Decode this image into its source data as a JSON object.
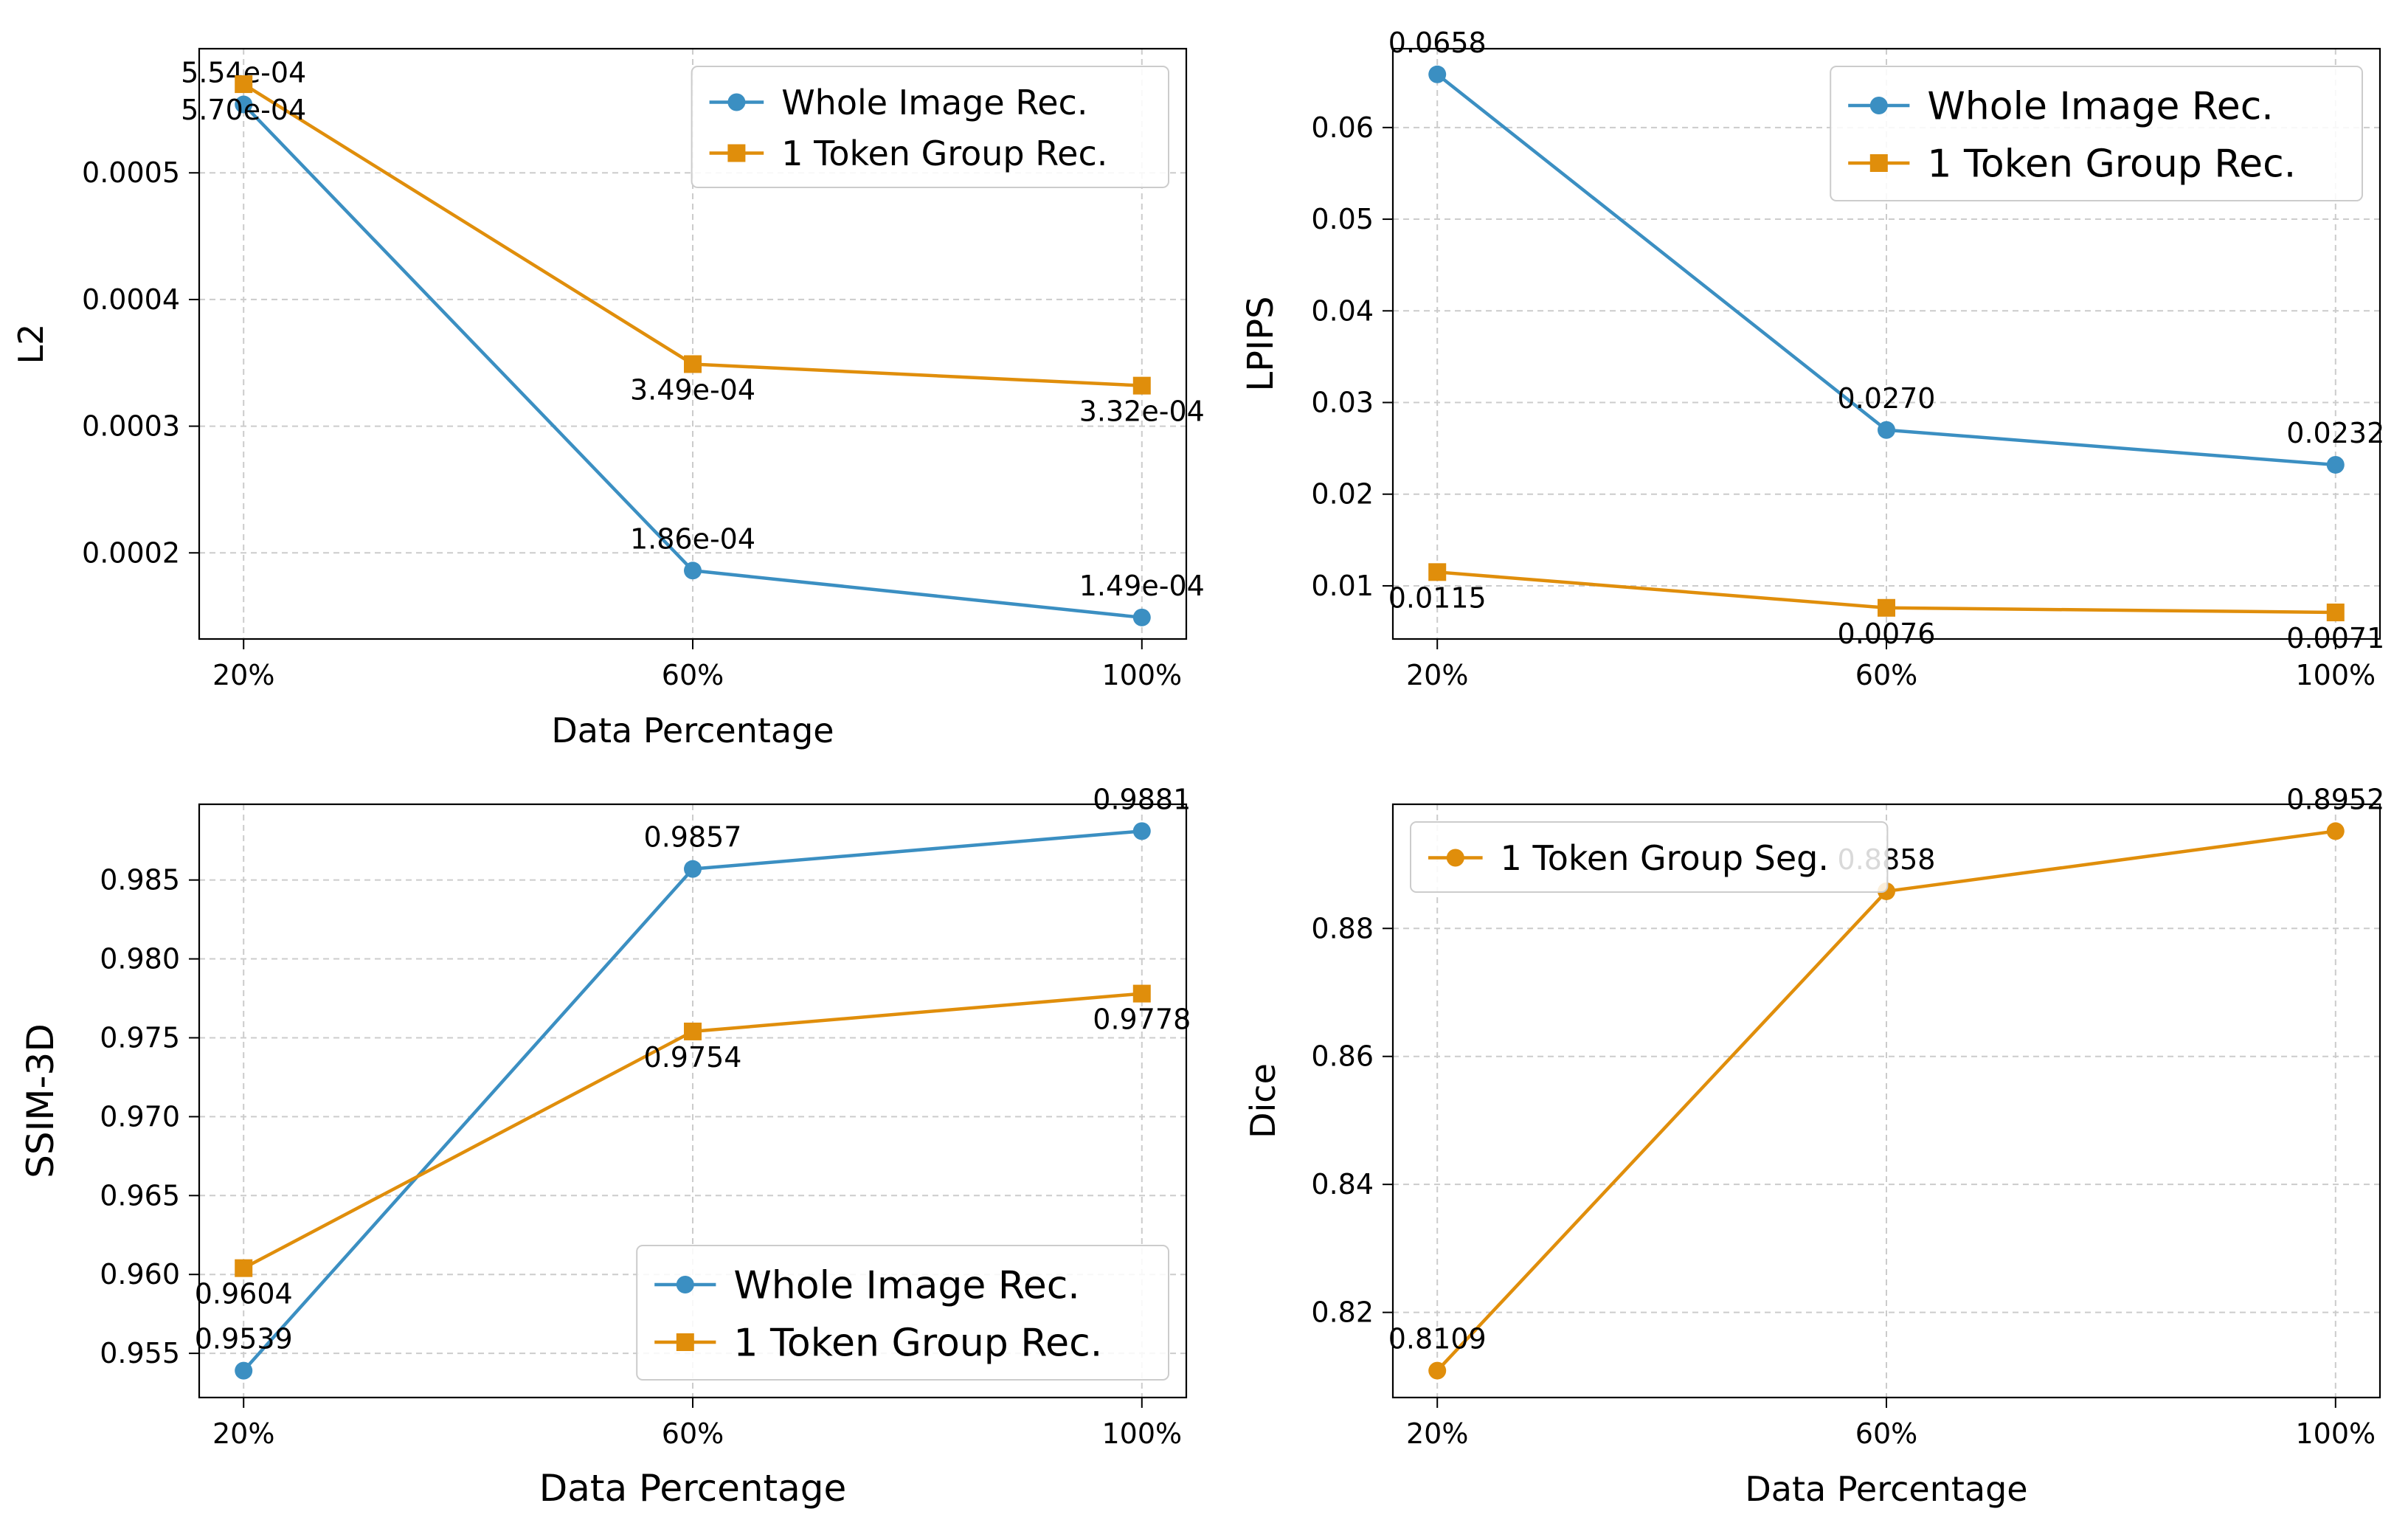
{
  "colors": {
    "whole": "#3b8fc2",
    "token": "#e08e0b"
  },
  "chart_data": [
    {
      "id": "l2",
      "type": "line",
      "title": "",
      "xlabel": "Data Percentage",
      "ylabel": "L2",
      "categories": [
        "20%",
        "60%",
        "100%"
      ],
      "ylim": [
        0.000132,
        0.000598
      ],
      "yticks": [
        0.0002,
        0.0003,
        0.0004,
        0.0005
      ],
      "ytick_labels": [
        "0.0002",
        "0.0003",
        "0.0004",
        "0.0005"
      ],
      "legend": "top-right",
      "series": [
        {
          "name": "Whole Image Rec.",
          "color": "whole",
          "marker": "circle",
          "values": [
            0.000554,
            0.000186,
            0.000149
          ],
          "labels": [
            "5.54e-04",
            "1.86e-04",
            "1.49e-04"
          ],
          "label_pos": [
            "above",
            "above",
            "above"
          ]
        },
        {
          "name": "1 Token Group Rec.",
          "color": "token",
          "marker": "square",
          "values": [
            0.00057,
            0.000349,
            0.000332
          ],
          "labels": [
            "5.70e-04",
            "3.49e-04",
            "3.32e-04"
          ],
          "label_pos": [
            "below",
            "below",
            "below"
          ]
        }
      ]
    },
    {
      "id": "lpips",
      "type": "line",
      "title": "",
      "xlabel": "",
      "ylabel": "LPIPS",
      "categories": [
        "20%",
        "60%",
        "100%"
      ],
      "ylim": [
        0.0042,
        0.0686
      ],
      "yticks": [
        0.01,
        0.02,
        0.03,
        0.04,
        0.05,
        0.06
      ],
      "ytick_labels": [
        "0.01",
        "0.02",
        "0.03",
        "0.04",
        "0.05",
        "0.06"
      ],
      "legend": "top-right",
      "series": [
        {
          "name": "Whole Image Rec.",
          "color": "whole",
          "marker": "circle",
          "values": [
            0.0658,
            0.027,
            0.0232
          ],
          "labels": [
            "0.0658",
            "0.0270",
            "0.0232"
          ],
          "label_pos": [
            "above",
            "above",
            "above"
          ]
        },
        {
          "name": "1 Token Group Rec.",
          "color": "token",
          "marker": "square",
          "values": [
            0.0115,
            0.0076,
            0.0071
          ],
          "labels": [
            "0.0115",
            "0.0076",
            "0.0071"
          ],
          "label_pos": [
            "below",
            "below",
            "below"
          ]
        }
      ]
    },
    {
      "id": "ssim",
      "type": "line",
      "title": "",
      "xlabel": "Data Percentage",
      "ylabel": "SSIM-3D",
      "categories": [
        "20%",
        "60%",
        "100%"
      ],
      "ylim": [
        0.9522,
        0.9898
      ],
      "yticks": [
        0.955,
        0.96,
        0.965,
        0.97,
        0.975,
        0.98,
        0.985
      ],
      "ytick_labels": [
        "0.955",
        "0.960",
        "0.965",
        "0.970",
        "0.975",
        "0.980",
        "0.985"
      ],
      "legend": "bottom-right",
      "series": [
        {
          "name": "Whole Image Rec.",
          "color": "whole",
          "marker": "circle",
          "values": [
            0.9539,
            0.9857,
            0.9881
          ],
          "labels": [
            "0.9539",
            "0.9857",
            "0.9881"
          ],
          "label_pos": [
            "above",
            "above",
            "above"
          ]
        },
        {
          "name": "1 Token Group Rec.",
          "color": "token",
          "marker": "square",
          "values": [
            0.9604,
            0.9754,
            0.9778
          ],
          "labels": [
            "0.9604",
            "0.9754",
            "0.9778"
          ],
          "label_pos": [
            "below",
            "below",
            "below"
          ]
        }
      ]
    },
    {
      "id": "dice",
      "type": "line",
      "title": "",
      "xlabel": "Data Percentage",
      "ylabel": "Dice",
      "categories": [
        "20%",
        "60%",
        "100%"
      ],
      "ylim": [
        0.8067,
        0.8994
      ],
      "yticks": [
        0.82,
        0.84,
        0.86,
        0.88
      ],
      "ytick_labels": [
        "0.82",
        "0.84",
        "0.86",
        "0.88"
      ],
      "legend": "top-left",
      "series": [
        {
          "name": "1 Token Group Seg.",
          "color": "token",
          "marker": "circle",
          "values": [
            0.8109,
            0.8858,
            0.8952
          ],
          "labels": [
            "0.8109",
            "0.8858",
            "0.8952"
          ],
          "label_pos": [
            "above",
            "above",
            "above"
          ]
        }
      ]
    }
  ]
}
